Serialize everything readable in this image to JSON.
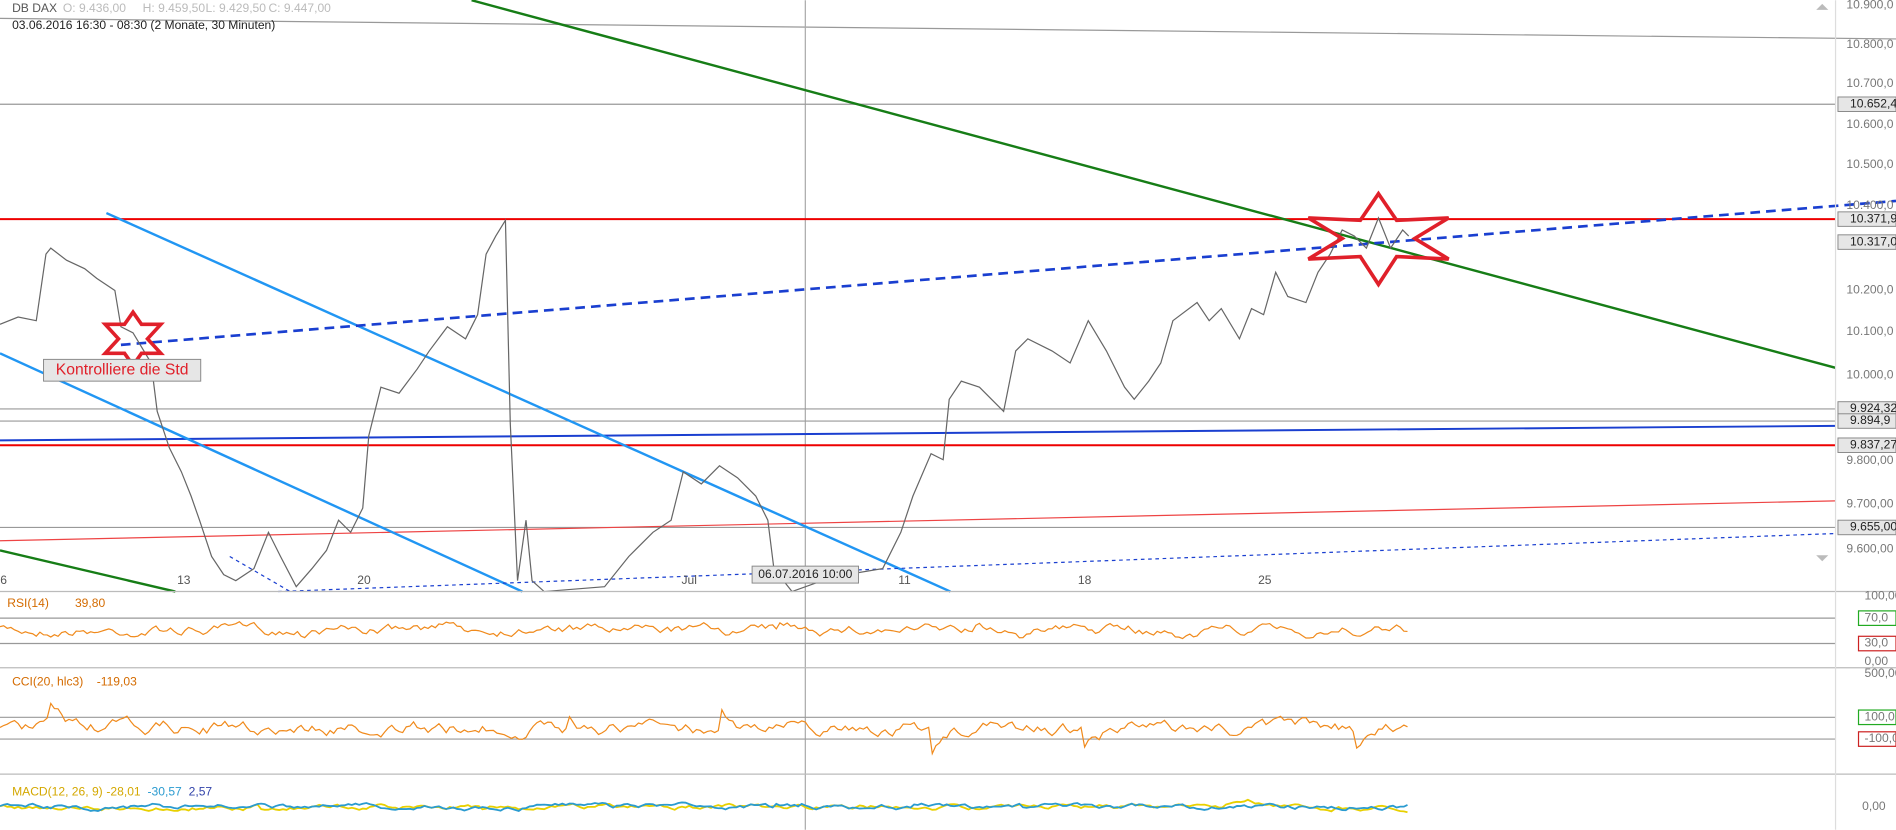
{
  "header": {
    "symbol": "DB DAX",
    "open": "O: 9.436,00",
    "high": "H: 9.459,50",
    "low": "L: 9.429,50",
    "close": "C: 9.447,00",
    "range": "03.06.2016 16:30 - 08:30 (2 Monate, 30 Minuten)"
  },
  "price_axis": [
    "10.900,0",
    "10.800,0",
    "10.700,0",
    "10.600,0",
    "10.500,0",
    "10.400,0",
    "10.200,0",
    "10.100,0",
    "10.000,0",
    "9.800,00",
    "9.700,00",
    "9.600,00"
  ],
  "price_markers": [
    "10.652,4",
    "10.371,9",
    "10.317,0",
    "9.924,32",
    "9.894,9",
    "9.837,27",
    "9.655,00"
  ],
  "x_axis": [
    "6",
    "13",
    "20",
    "Jul",
    "11",
    "18",
    "25"
  ],
  "tooltip": "06.07.2016 10:00",
  "annotation": "Kontrolliere die Std",
  "rsi": {
    "label": "RSI(14)",
    "value": "39,80",
    "axis": [
      "100,00",
      "70,0",
      "30,0",
      "0,00"
    ]
  },
  "cci": {
    "label": "CCI(20, hlc3)",
    "value": "-119,03",
    "axis": [
      "500,00",
      "100,0",
      "-100,0"
    ]
  },
  "macd": {
    "label": "MACD(12, 26, 9)",
    "values": [
      "-28,01",
      "-30,57",
      "2,57"
    ],
    "axis": "0,00"
  }
}
